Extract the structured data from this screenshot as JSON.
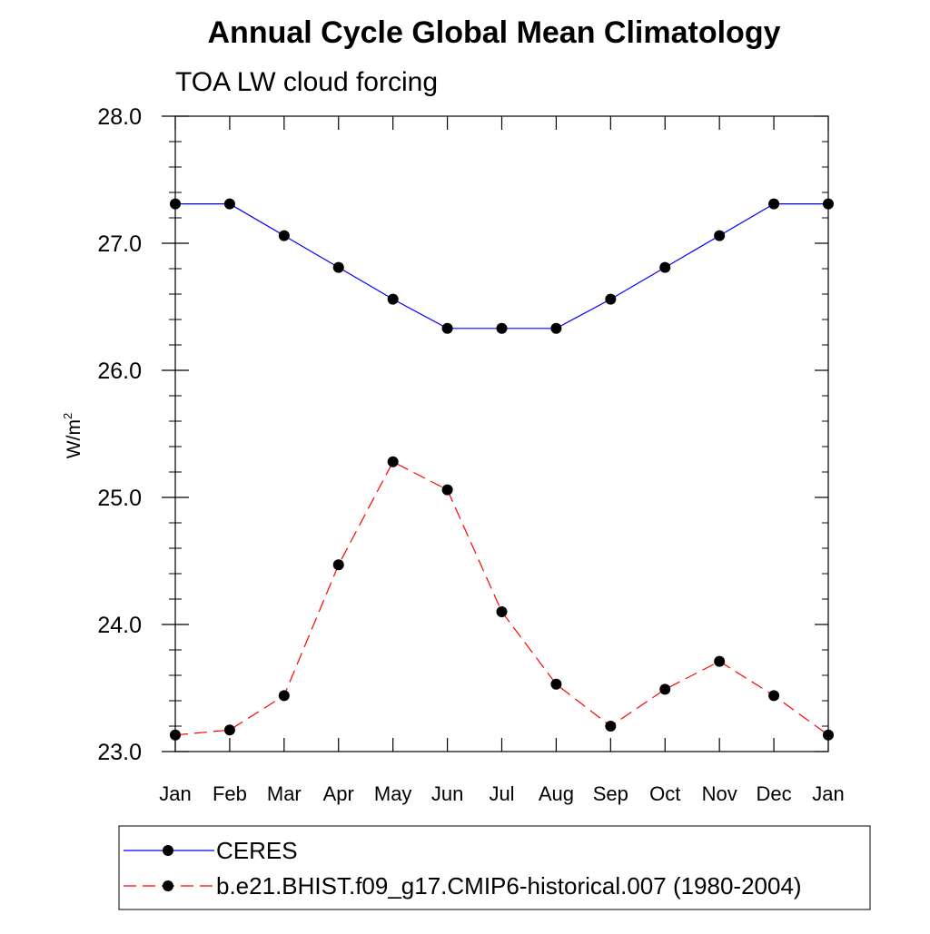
{
  "chart_data": {
    "type": "line",
    "title": "Annual Cycle Global Mean Climatology",
    "subtitle": "TOA LW cloud forcing",
    "xlabel": "",
    "ylabel": "W/m",
    "ylabel_superscript": "2",
    "categories": [
      "Jan",
      "Feb",
      "Mar",
      "Apr",
      "May",
      "Jun",
      "Jul",
      "Aug",
      "Sep",
      "Oct",
      "Nov",
      "Dec",
      "Jan"
    ],
    "ylim": [
      23.0,
      28.0
    ],
    "yticks": [
      "23.0",
      "24.0",
      "25.0",
      "26.0",
      "27.0",
      "28.0"
    ],
    "ytick_values": [
      23.0,
      24.0,
      25.0,
      26.0,
      27.0,
      28.0
    ],
    "yminor_step": 0.2,
    "grid": false,
    "legend_position": "bottom",
    "series": [
      {
        "name": "CERES",
        "color": "#0000ff",
        "dash": "solid",
        "values": [
          27.31,
          27.31,
          27.06,
          26.81,
          26.56,
          26.33,
          26.33,
          26.33,
          26.56,
          26.81,
          27.06,
          27.31,
          27.31
        ]
      },
      {
        "name": "b.e21.BHIST.f09_g17.CMIP6-historical.007 (1980-2004)",
        "color": "#ff0000",
        "dash": "dashed",
        "values": [
          23.13,
          23.17,
          23.44,
          24.47,
          25.28,
          25.06,
          24.1,
          23.53,
          23.2,
          23.49,
          23.71,
          23.44,
          23.13
        ]
      }
    ]
  }
}
